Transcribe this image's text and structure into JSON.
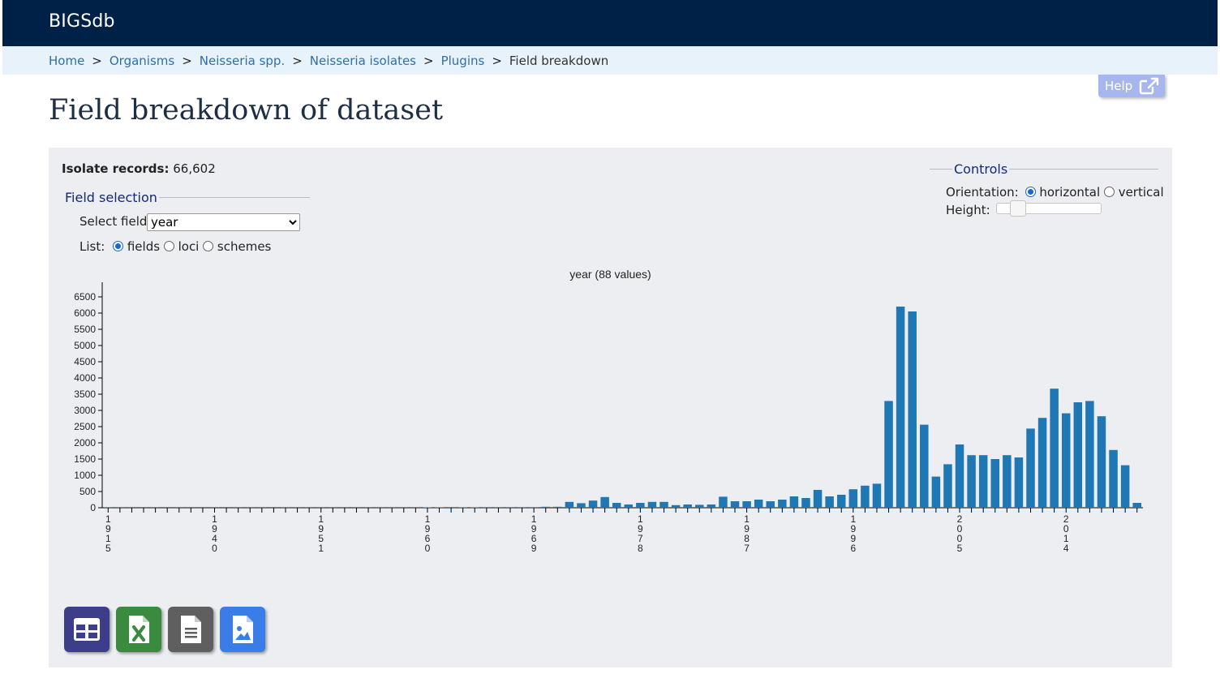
{
  "header": {
    "brand": "BIGSdb"
  },
  "breadcrumb": {
    "items": [
      "Home",
      "Organisms",
      "Neisseria spp.",
      "Neisseria isolates",
      "Plugins"
    ],
    "separator": ">",
    "current": "Field breakdown"
  },
  "help": {
    "label": "Help",
    "icon": "external-link-icon"
  },
  "page": {
    "title": "Field breakdown of dataset"
  },
  "records": {
    "label": "Isolate records:",
    "value": "66,602"
  },
  "field_selection": {
    "legend": "Field selection",
    "select_label": "Select field:",
    "selected": "year",
    "list_label": "List:",
    "list_options": [
      "fields",
      "loci",
      "schemes"
    ],
    "list_selected": "fields"
  },
  "controls": {
    "legend": "Controls",
    "orientation_label": "Orientation:",
    "orientation_options": [
      "horizontal",
      "vertical"
    ],
    "orientation_selected": "horizontal",
    "height_label": "Height:",
    "height_fraction": 0.15
  },
  "buttons": [
    {
      "name": "table-view-button",
      "icon": "table-icon",
      "color": "#3d3e8a"
    },
    {
      "name": "excel-export-button",
      "icon": "excel-icon",
      "color": "#3a8a3f"
    },
    {
      "name": "text-export-button",
      "icon": "text-file-icon",
      "color": "#5f5f5f"
    },
    {
      "name": "image-export-button",
      "icon": "image-file-icon",
      "color": "#3b7de8"
    }
  ],
  "colors": {
    "bar": "#1f77b4",
    "header": "#002147",
    "breadcrumb_bg": "#e8f2fb",
    "panel_bg": "#eceef2",
    "legend": "#102a7a"
  },
  "chart_data": {
    "type": "bar",
    "title": "year (88 values)",
    "y_ticks": [
      0,
      500,
      1000,
      1500,
      2000,
      2500,
      3000,
      3500,
      4000,
      4500,
      5000,
      5500,
      6000,
      6500
    ],
    "ylim": [
      0,
      6700
    ],
    "x_tick_labels": [
      "1915",
      "1940",
      "1951",
      "1960",
      "1969",
      "1978",
      "1987",
      "1996",
      "2005",
      "2014"
    ],
    "x_tick_label_positions": [
      0,
      9,
      18,
      27,
      36,
      45,
      54,
      63,
      72,
      81
    ],
    "values": [
      5,
      3,
      2,
      2,
      3,
      2,
      3,
      2,
      2,
      3,
      2,
      3,
      3,
      3,
      2,
      3,
      3,
      3,
      3,
      3,
      3,
      3,
      3,
      3,
      3,
      3,
      3,
      10,
      15,
      20,
      15,
      15,
      5,
      5,
      5,
      5,
      5,
      30,
      30,
      180,
      140,
      220,
      330,
      150,
      100,
      150,
      180,
      180,
      80,
      100,
      90,
      100,
      340,
      200,
      200,
      250,
      200,
      250,
      350,
      300,
      550,
      350,
      400,
      570,
      680,
      740,
      3290,
      6200,
      6050,
      2560,
      960,
      1340,
      1950,
      1620,
      1620,
      1500,
      1620,
      1550,
      2440,
      2770,
      3670,
      2910,
      3250,
      3290,
      2820,
      1780,
      1310,
      150
    ]
  }
}
